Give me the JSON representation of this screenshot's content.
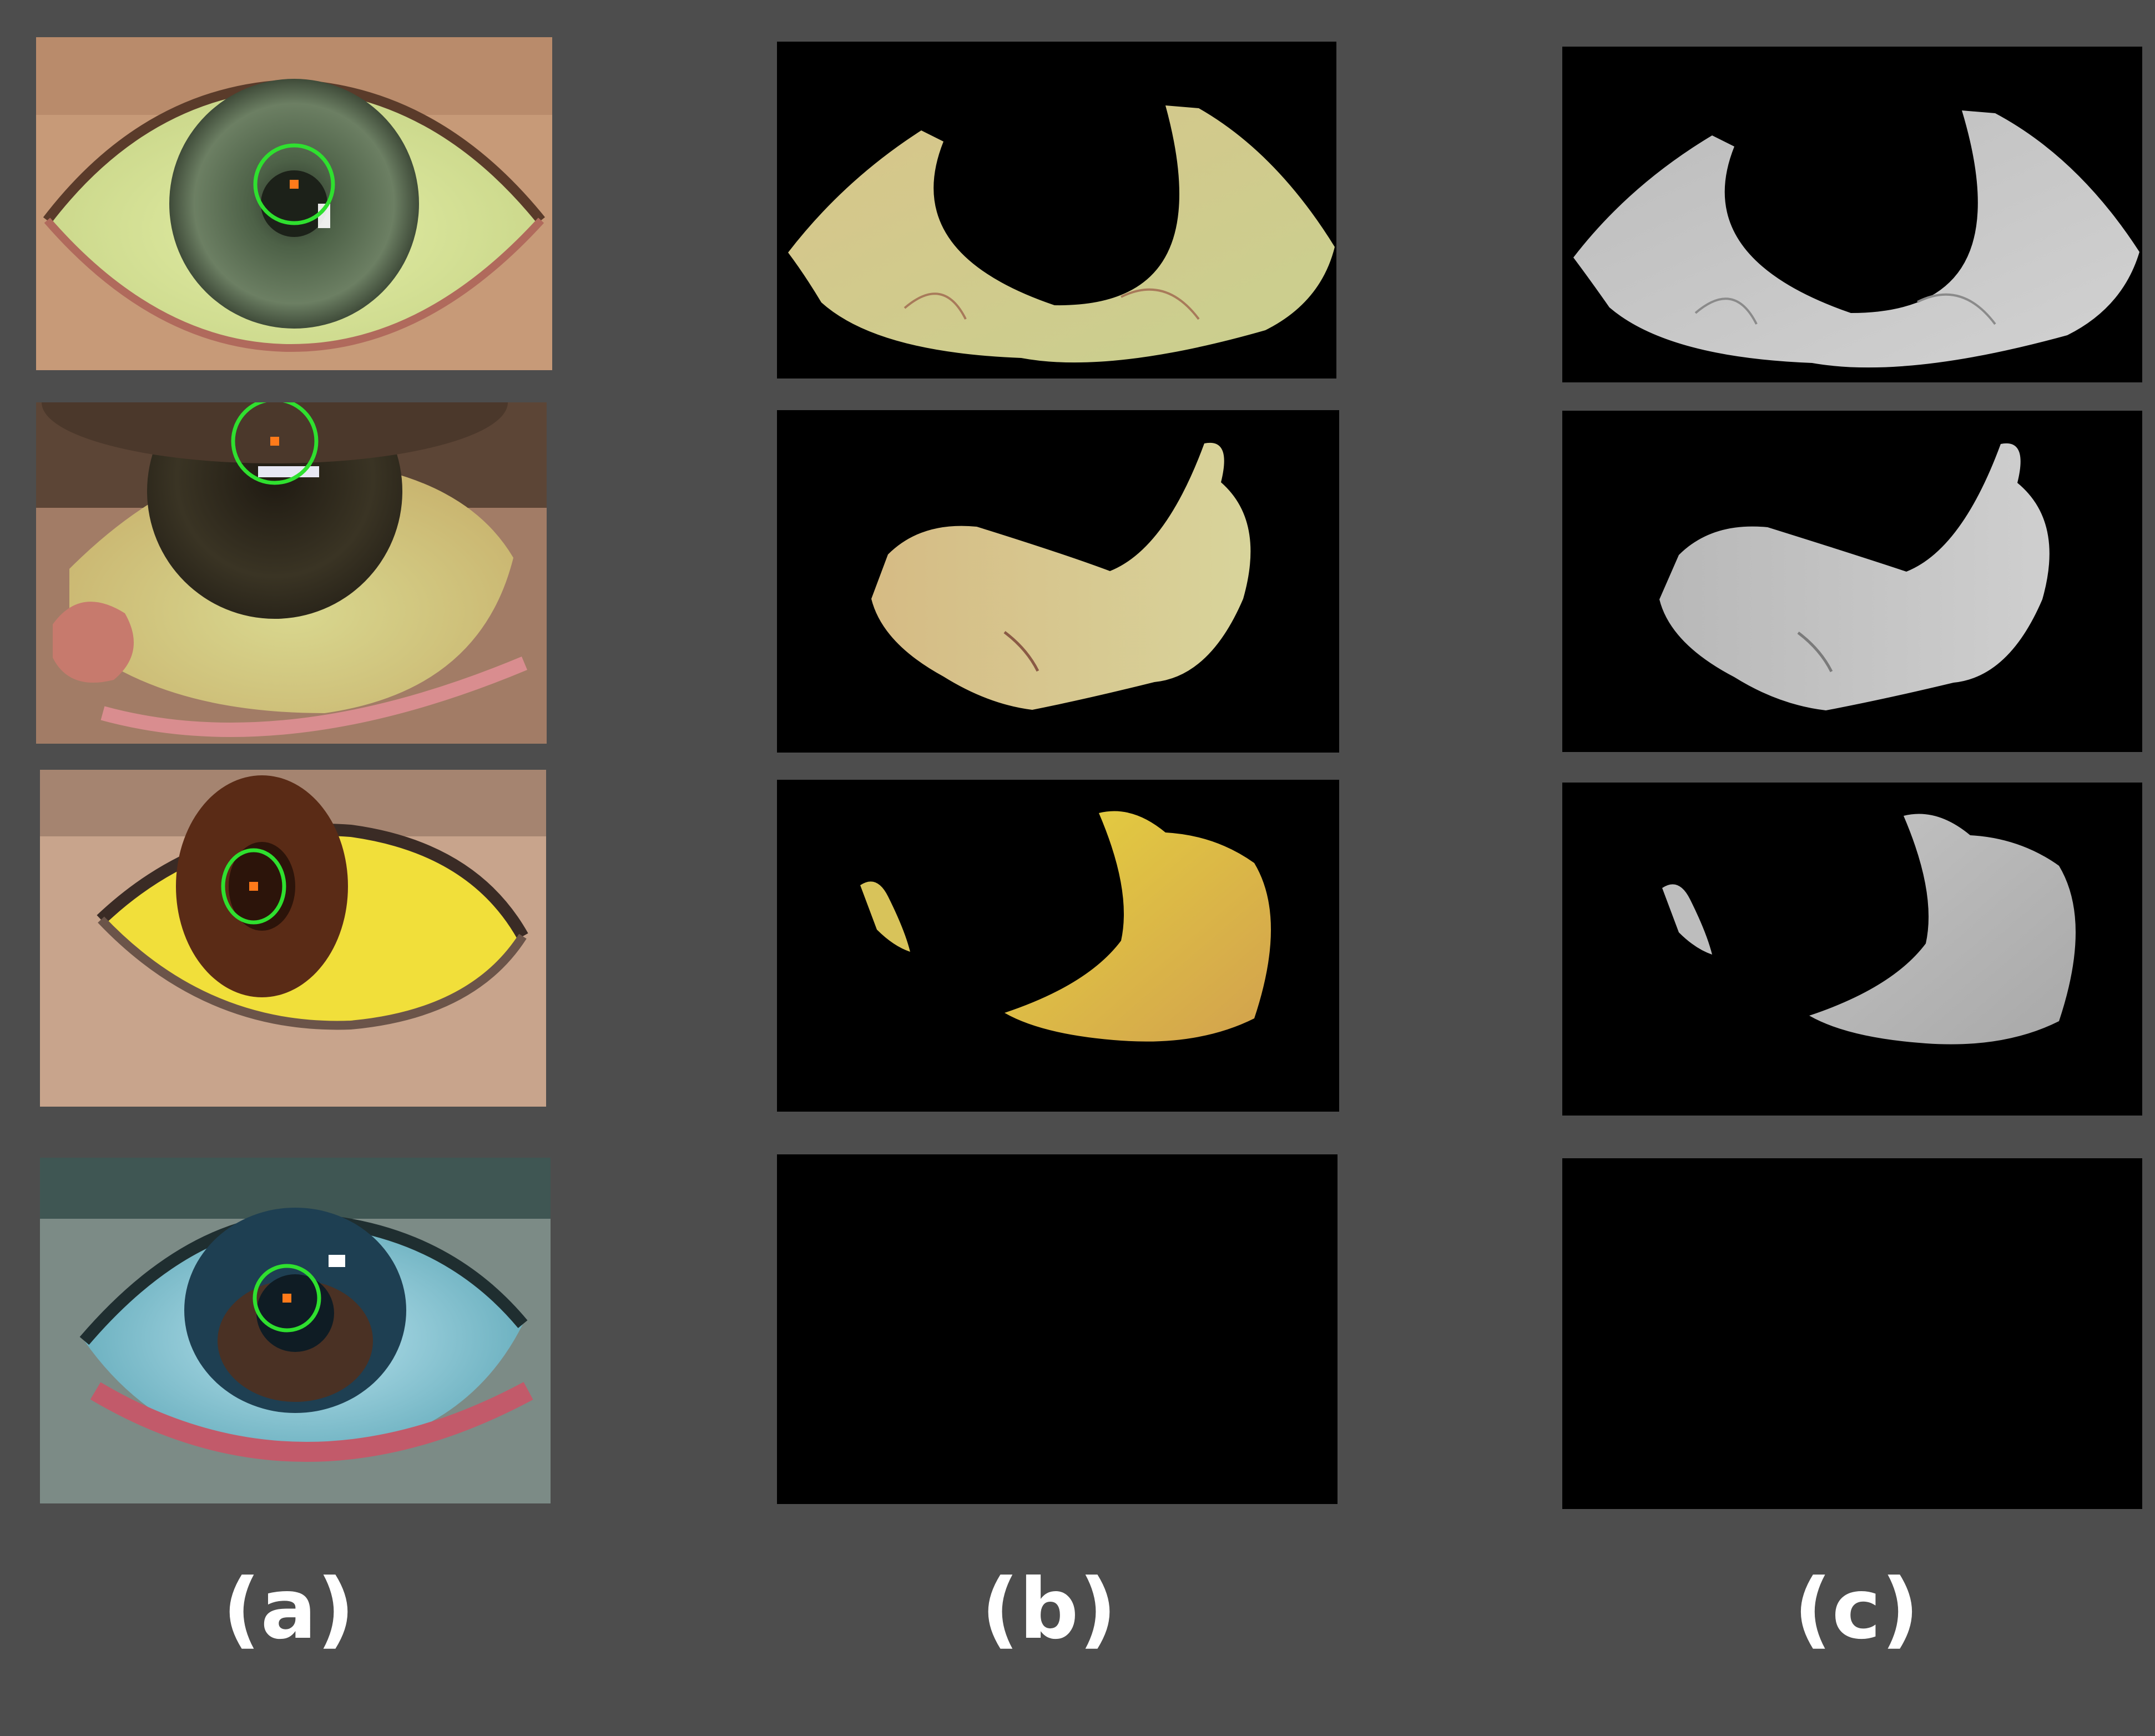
{
  "captions": {
    "a": "(a)",
    "b": "(b)",
    "c": "(c)"
  },
  "colors": {
    "background": "#4d4d4d",
    "mask": "#000000",
    "detection_circle": "#2fe02f",
    "center_marker": "#ff7a1a"
  },
  "rows": [
    {
      "photo": "eye-green-iris-yellow-sclera",
      "segmented": "sclera-crescent-upper",
      "grayscale": "sclera-crescent-upper-gray"
    },
    {
      "photo": "eye-brown-iris-upward-gaze",
      "segmented": "sclera-lower-band",
      "grayscale": "sclera-lower-band-gray"
    },
    {
      "photo": "eye-brown-iris-bright-yellow-sclera",
      "segmented": "sclera-right-crescent",
      "grayscale": "sclera-right-crescent-gray"
    },
    {
      "photo": "eye-blue-tint-no-yellow",
      "segmented": "empty-mask",
      "grayscale": "empty-mask-gray"
    }
  ]
}
